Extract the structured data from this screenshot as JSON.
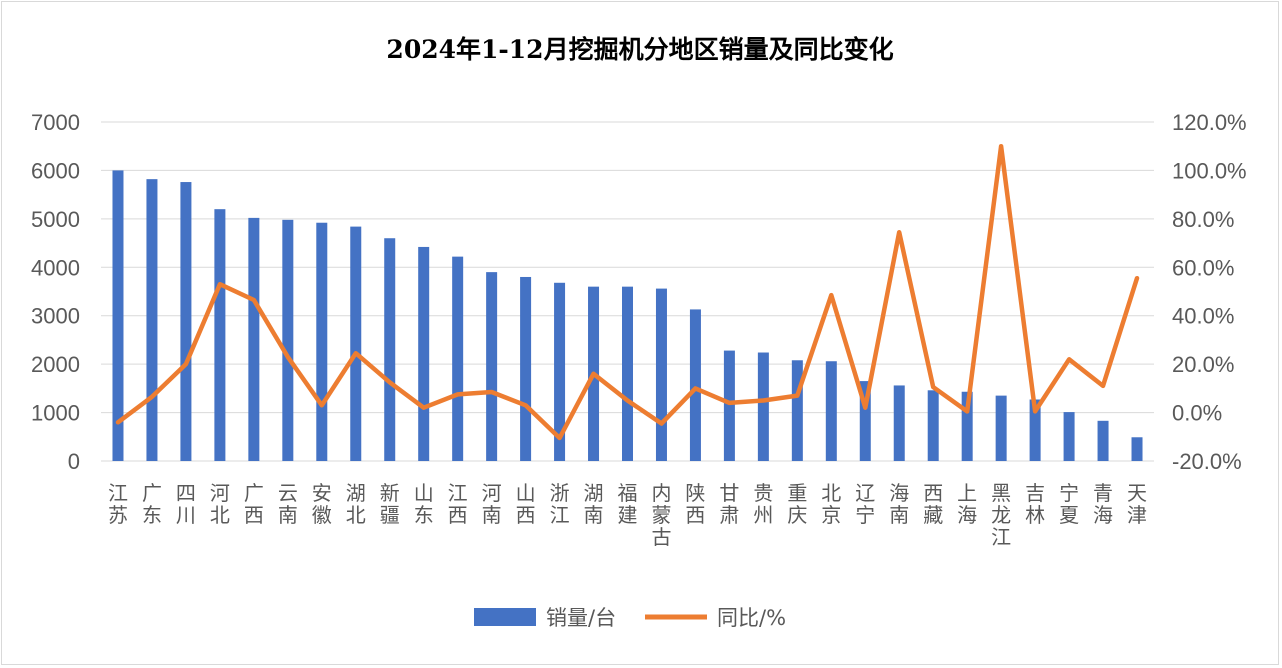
{
  "chart_data": {
    "type": "bar+line",
    "title": "2024年1-12月挖掘机分地区销量及同比变化",
    "categories": [
      "江苏",
      "广东",
      "四川",
      "河北",
      "广西",
      "云南",
      "安徽",
      "湖北",
      "新疆",
      "山东",
      "江西",
      "河南",
      "山西",
      "浙江",
      "湖南",
      "福建",
      "内蒙古",
      "陕西",
      "甘肃",
      "贵州",
      "重庆",
      "北京",
      "辽宁",
      "海南",
      "西藏",
      "上海",
      "黑龙江",
      "吉林",
      "宁夏",
      "青海",
      "天津"
    ],
    "series": [
      {
        "name": "销量/台",
        "type": "bar",
        "axis": "left",
        "color": "#4472C4",
        "values": [
          6000,
          5820,
          5760,
          5200,
          5020,
          4980,
          4920,
          4840,
          4600,
          4420,
          4220,
          3900,
          3800,
          3680,
          3600,
          3600,
          3560,
          3130,
          2280,
          2240,
          2080,
          2060,
          1650,
          1560,
          1460,
          1430,
          1350,
          1270,
          1010,
          830,
          490
        ]
      },
      {
        "name": "同比/%",
        "type": "line",
        "axis": "right",
        "color": "#ED7D31",
        "values": [
          -4.0,
          6.5,
          20.0,
          53.0,
          46.5,
          23.0,
          3.0,
          24.5,
          12.5,
          2.0,
          7.5,
          8.5,
          3.0,
          -10.5,
          16.0,
          5.0,
          -4.5,
          10.0,
          4.0,
          5.0,
          7.0,
          48.5,
          2.0,
          74.5,
          10.5,
          0.5,
          110.0,
          0.5,
          22.0,
          11.0,
          55.5
        ]
      }
    ],
    "y_left": {
      "ticks": [
        "7000",
        "6000",
        "5000",
        "4000",
        "3000",
        "2000",
        "1000",
        "0"
      ],
      "ylim": [
        0,
        7000
      ]
    },
    "y_right": {
      "ticks": [
        "120.0%",
        "100.0%",
        "80.0%",
        "60.0%",
        "40.0%",
        "20.0%",
        "0.0%",
        "-20.0%"
      ],
      "ylim": [
        -20,
        120
      ]
    },
    "grid": true,
    "legend": "bottom-center"
  }
}
